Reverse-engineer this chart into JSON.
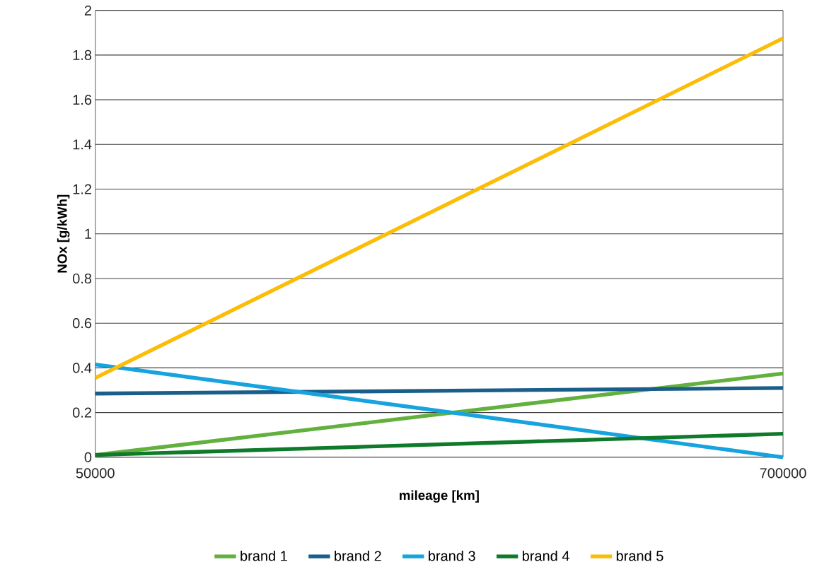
{
  "chart_data": {
    "type": "line",
    "xlabel": "mileage [km]",
    "ylabel": "NOx [g/kWh]",
    "x": [
      50000,
      700000
    ],
    "xlim": [
      50000,
      700000
    ],
    "xticks": [
      50000,
      700000
    ],
    "ylim": [
      0,
      2
    ],
    "yticks": [
      0,
      0.2,
      0.4,
      0.6,
      0.8,
      1,
      1.2,
      1.4,
      1.6,
      1.8,
      2
    ],
    "grid": "y",
    "legend": "bottom",
    "marker": "none",
    "line_style": "solid",
    "series": [
      {
        "name": "brand 1",
        "color": "#62b03e",
        "values": [
          0.01,
          0.375
        ]
      },
      {
        "name": "brand 2",
        "color": "#1a5e8a",
        "values": [
          0.285,
          0.31
        ]
      },
      {
        "name": "brand 3",
        "color": "#16a3de",
        "values": [
          0.415,
          0.0
        ]
      },
      {
        "name": "brand 4",
        "color": "#0f7a2a",
        "values": [
          0.01,
          0.105
        ]
      },
      {
        "name": "brand 5",
        "color": "#fbbd08",
        "values": [
          0.355,
          1.875
        ]
      }
    ]
  }
}
